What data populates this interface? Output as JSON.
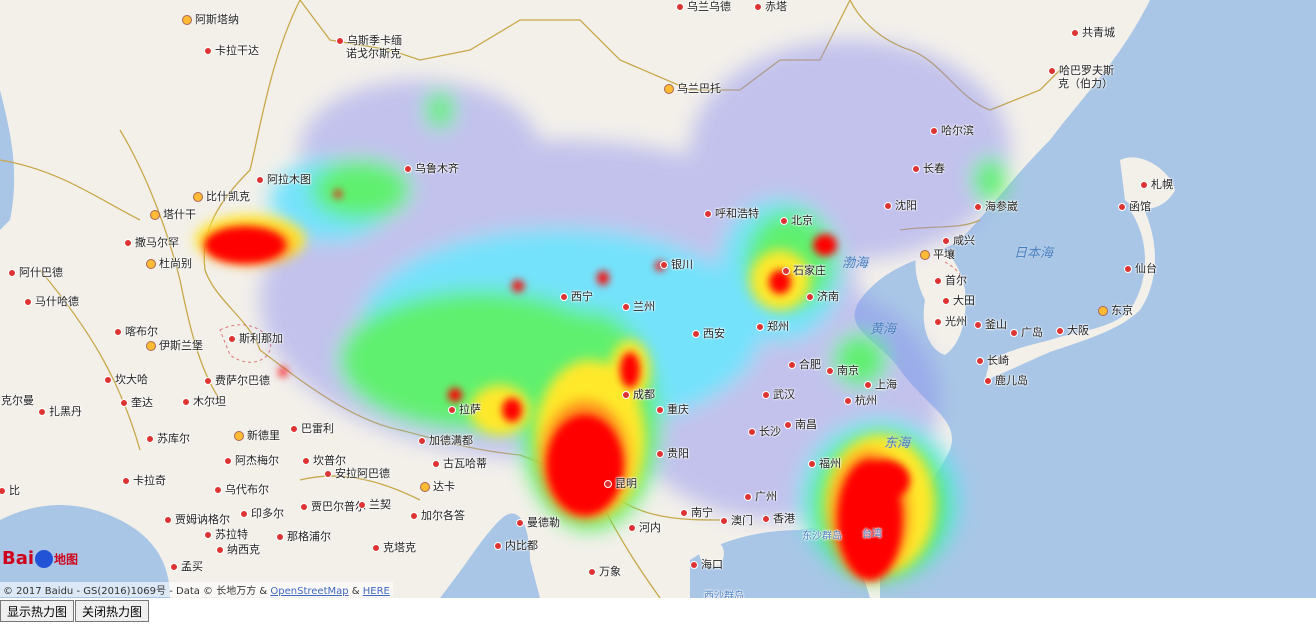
{
  "map": {
    "cities": [
      {
        "name": "阿斯塔纳",
        "type": "cap"
      },
      {
        "name": "卡拉干达",
        "type": "dot"
      },
      {
        "name": "乌斯季卡缅",
        "type": "dot",
        "line2": "诺戈尔斯克"
      },
      {
        "name": "乌兰巴托",
        "type": "cap"
      },
      {
        "name": "乌兰乌德",
        "type": "dot"
      },
      {
        "name": "赤塔",
        "type": "dot"
      },
      {
        "name": "共青城",
        "type": "dot"
      },
      {
        "name": "哈巴罗夫斯",
        "type": "dot",
        "line2": "克（伯力）"
      },
      {
        "name": "哈尔滨",
        "type": "dot"
      },
      {
        "name": "长春",
        "type": "dot"
      },
      {
        "name": "沈阳",
        "type": "dot"
      },
      {
        "name": "海参崴",
        "type": "dot"
      },
      {
        "name": "呼和浩特",
        "type": "dot"
      },
      {
        "name": "北京",
        "type": "dot"
      },
      {
        "name": "乌鲁木齐",
        "type": "dot"
      },
      {
        "name": "阿拉木图",
        "type": "dot"
      },
      {
        "name": "比什凯克",
        "type": "cap"
      },
      {
        "name": "塔什干",
        "type": "cap"
      },
      {
        "name": "撒马尔罕",
        "type": "dot"
      },
      {
        "name": "杜尚别",
        "type": "cap"
      },
      {
        "name": "阿什巴德",
        "type": "dot"
      },
      {
        "name": "马什哈德",
        "type": "dot"
      },
      {
        "name": "喀布尔",
        "type": "dot"
      },
      {
        "name": "伊斯兰堡",
        "type": "cap"
      },
      {
        "name": "斯利那加",
        "type": "dot"
      },
      {
        "name": "坎大哈",
        "type": "dot"
      },
      {
        "name": "奎达",
        "type": "dot"
      },
      {
        "name": "木尔坦",
        "type": "dot"
      },
      {
        "name": "费萨尔巴德",
        "type": "dot"
      },
      {
        "name": "克尔曼",
        "type": "dot"
      },
      {
        "name": "扎黑丹",
        "type": "dot"
      },
      {
        "name": "苏库尔",
        "type": "dot"
      },
      {
        "name": "新德里",
        "type": "cap"
      },
      {
        "name": "巴雷利",
        "type": "dot"
      },
      {
        "name": "阿杰梅尔",
        "type": "dot"
      },
      {
        "name": "坎普尔",
        "type": "dot"
      },
      {
        "name": "安拉阿巴德",
        "type": "dot"
      },
      {
        "name": "卡拉奇",
        "type": "dot"
      },
      {
        "name": "乌代布尔",
        "type": "dot"
      },
      {
        "name": "印多尔",
        "type": "dot"
      },
      {
        "name": "贾巴尔普尔",
        "type": "dot"
      },
      {
        "name": "兰契",
        "type": "dot"
      },
      {
        "name": "贾姆讷格尔",
        "type": "dot"
      },
      {
        "name": "苏拉特",
        "type": "dot"
      },
      {
        "name": "那格浦尔",
        "type": "dot"
      },
      {
        "name": "纳西克",
        "type": "dot"
      },
      {
        "name": "克塔克",
        "type": "dot"
      },
      {
        "name": "孟买",
        "type": "dot"
      },
      {
        "name": "加尔各答",
        "type": "dot"
      },
      {
        "name": "达卡",
        "type": "cap"
      },
      {
        "name": "曼德勒",
        "type": "dot"
      },
      {
        "name": "内比都",
        "type": "dot"
      },
      {
        "name": "河内",
        "type": "dot"
      },
      {
        "name": "万象",
        "type": "dot"
      },
      {
        "name": "拉萨",
        "type": "dot"
      },
      {
        "name": "西宁",
        "type": "dot"
      },
      {
        "name": "兰州",
        "type": "dot"
      },
      {
        "name": "银川",
        "type": "dot"
      },
      {
        "name": "西安",
        "type": "dot"
      },
      {
        "name": "郑州",
        "type": "dot"
      },
      {
        "name": "济南",
        "type": "dot"
      },
      {
        "name": "石家庄",
        "type": "dot"
      },
      {
        "name": "成都",
        "type": "dot"
      },
      {
        "name": "重庆",
        "type": "dot"
      },
      {
        "name": "贵阳",
        "type": "dot"
      },
      {
        "name": "昆明",
        "type": "dot"
      },
      {
        "name": "南宁",
        "type": "dot"
      },
      {
        "name": "海口",
        "type": "dot"
      },
      {
        "name": "广州",
        "type": "dot"
      },
      {
        "name": "香港",
        "type": "dot"
      },
      {
        "name": "澳门",
        "type": "dot"
      },
      {
        "name": "福州",
        "type": "dot"
      },
      {
        "name": "长沙",
        "type": "dot"
      },
      {
        "name": "南昌",
        "type": "dot"
      },
      {
        "name": "武汉",
        "type": "dot"
      },
      {
        "name": "合肥",
        "type": "dot"
      },
      {
        "name": "南京",
        "type": "dot"
      },
      {
        "name": "上海",
        "type": "dot"
      },
      {
        "name": "杭州",
        "type": "dot"
      },
      {
        "name": "平壤",
        "type": "cap"
      },
      {
        "name": "首尔",
        "type": "dot"
      },
      {
        "name": "咸兴",
        "type": "dot"
      },
      {
        "name": "大田",
        "type": "dot"
      },
      {
        "name": "光州",
        "type": "dot"
      },
      {
        "name": "釜山",
        "type": "dot"
      },
      {
        "name": "广岛",
        "type": "dot"
      },
      {
        "name": "大阪",
        "type": "dot"
      },
      {
        "name": "东京",
        "type": "cap"
      },
      {
        "name": "长崎",
        "type": "dot"
      },
      {
        "name": "鹿儿岛",
        "type": "dot"
      },
      {
        "name": "仙台",
        "type": "dot"
      },
      {
        "name": "函馆",
        "type": "dot"
      },
      {
        "name": "札幌",
        "type": "dot"
      },
      {
        "name": "古瓦哈蒂",
        "type": "dot"
      },
      {
        "name": "加德满都",
        "type": "dot"
      },
      {
        "name": "比",
        "type": "dot"
      }
    ],
    "seas": [
      "渤海",
      "黄海",
      "东海",
      "日本海"
    ],
    "islands": [
      "台湾",
      "东沙群岛",
      "西沙群岛"
    ],
    "heat_points_count": 0
  },
  "logo": {
    "text": "Bai",
    "paw": "du",
    "sub": "地图"
  },
  "copyright": {
    "prefix": "© 2017 Baidu - GS(2016)1069号 - Data © 长地万方 & ",
    "link1": "OpenStreetMap",
    "mid": " & ",
    "link2": "HERE"
  },
  "controls": {
    "show": "显示热力图",
    "hide": "关闭热力图"
  }
}
